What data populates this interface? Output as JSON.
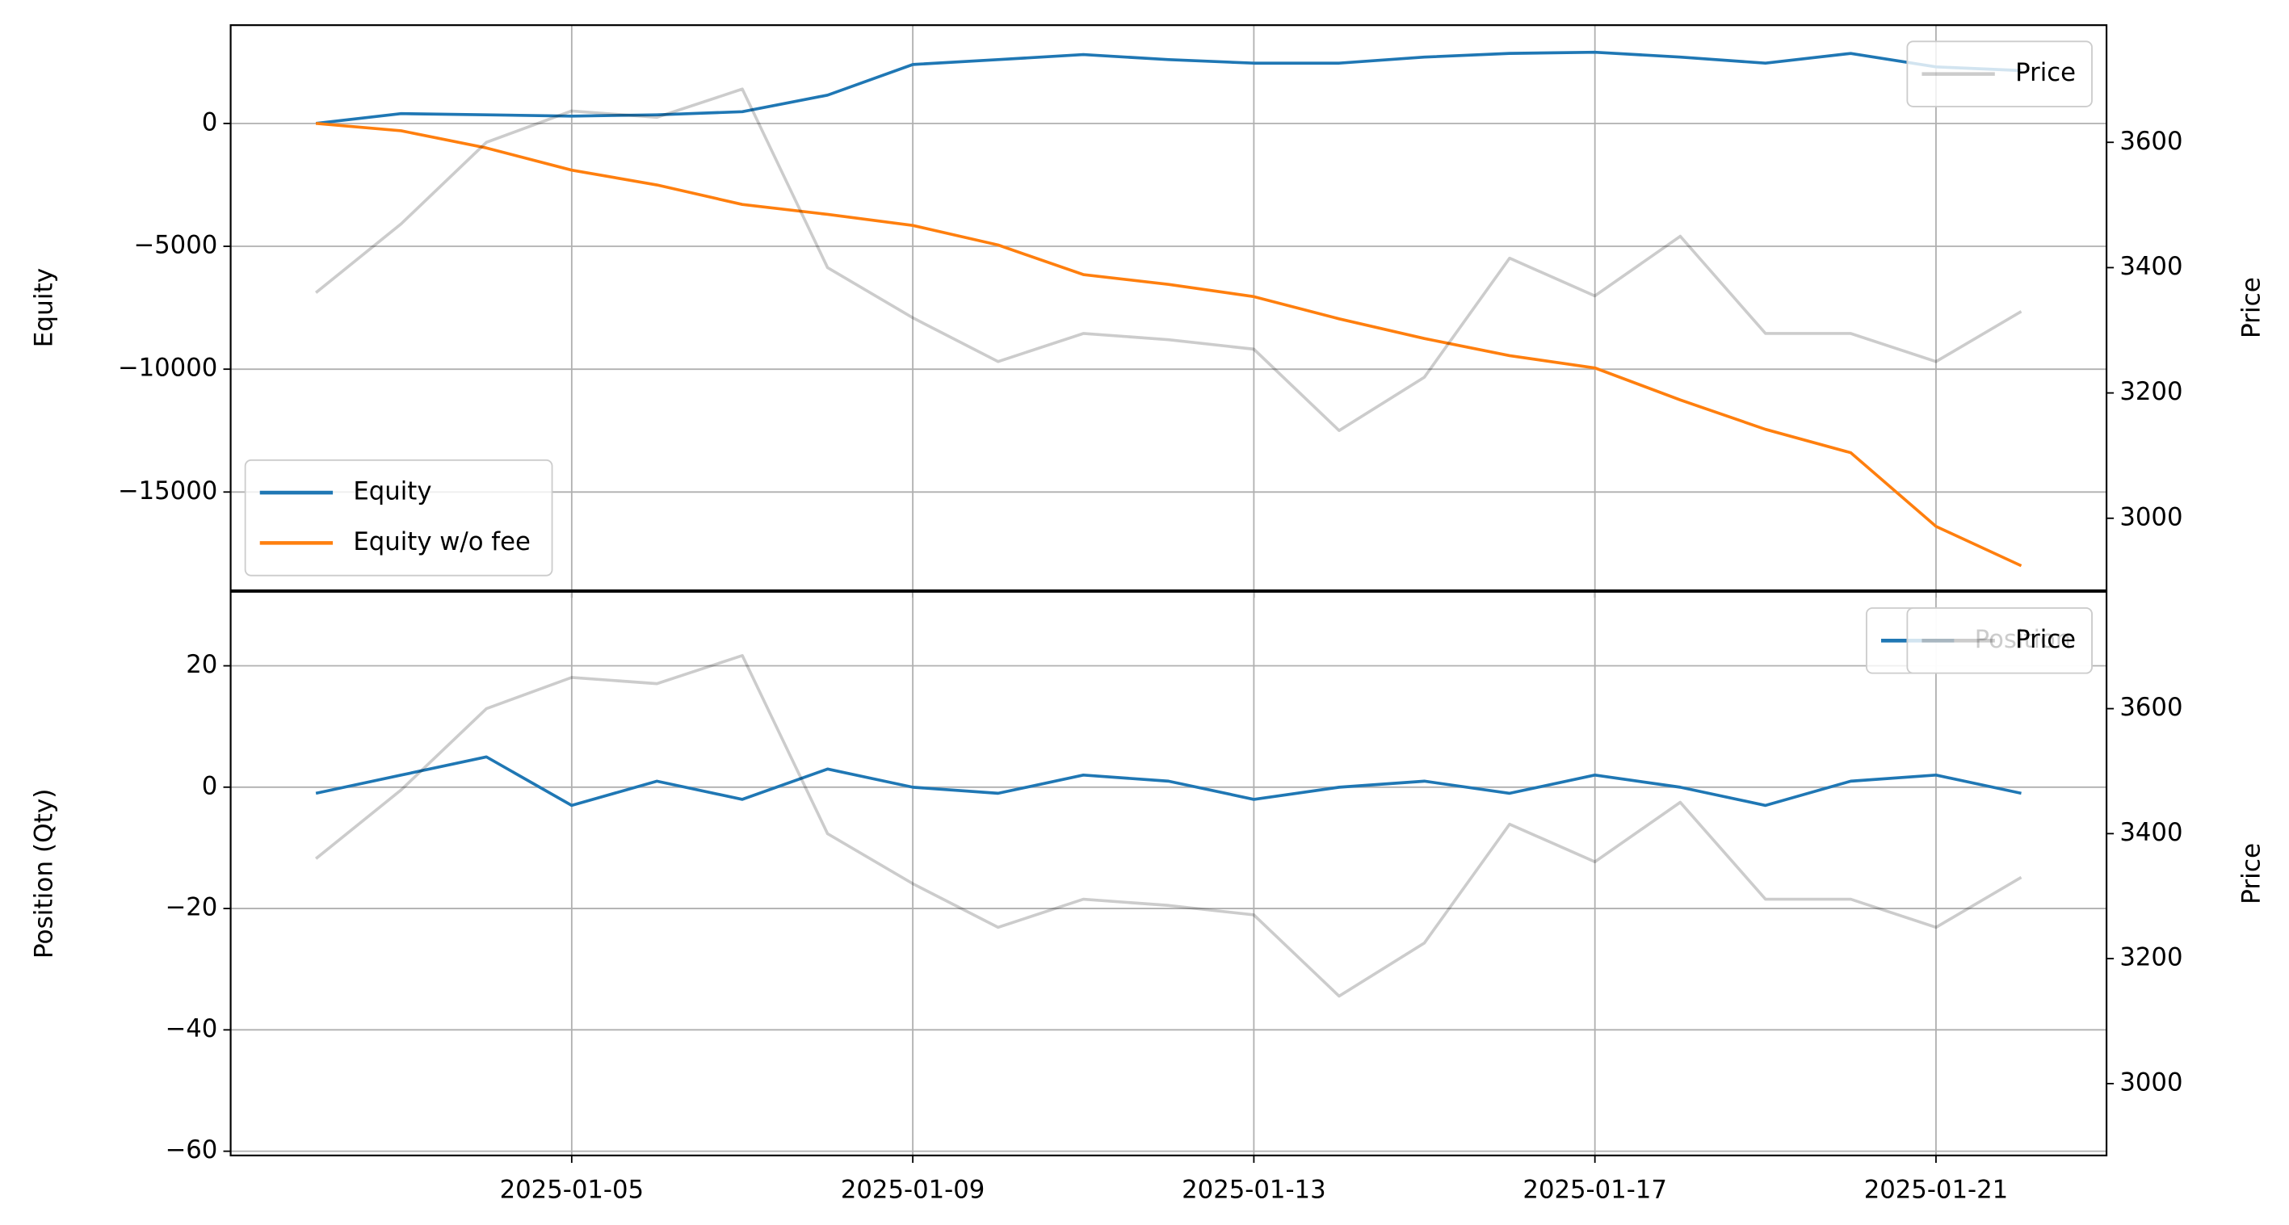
{
  "chart_data": [
    {
      "type": "line",
      "ylabel": "Equity",
      "y2label": "Price",
      "x": [
        "2025-01-02",
        "2025-01-03",
        "2025-01-04",
        "2025-01-05",
        "2025-01-06",
        "2025-01-07",
        "2025-01-08",
        "2025-01-09",
        "2025-01-10",
        "2025-01-11",
        "2025-01-12",
        "2025-01-13",
        "2025-01-14",
        "2025-01-15",
        "2025-01-16",
        "2025-01-17",
        "2025-01-18",
        "2025-01-19",
        "2025-01-20",
        "2025-01-21",
        "2025-01-22"
      ],
      "series": [
        {
          "name": "Equity",
          "color": "#1f77b4",
          "axis": "y",
          "values": [
            0,
            400,
            350,
            300,
            350,
            480,
            1150,
            2400,
            2600,
            2800,
            2600,
            2450,
            2450,
            2700,
            2850,
            2900,
            2700,
            2450,
            2850,
            2300,
            2150
          ]
        },
        {
          "name": "Equity w/o fee",
          "color": "#ff7f0e",
          "axis": "y",
          "values": [
            0,
            -300,
            -1000,
            -1900,
            -2500,
            -3300,
            -3700,
            -4150,
            -4950,
            -6150,
            -6550,
            -7050,
            -7950,
            -8750,
            -9450,
            -9950,
            -11250,
            -12450,
            -13400,
            -16400,
            -18000
          ]
        },
        {
          "name": "Price",
          "color": "#cccccc",
          "axis": "y2",
          "values": [
            3360,
            3470,
            3600,
            3650,
            3640,
            3685,
            3400,
            3320,
            3250,
            3295,
            3285,
            3270,
            3140,
            3225,
            3415,
            3355,
            3450,
            3295,
            3295,
            3250,
            3330
          ]
        }
      ],
      "xlim": [
        "2025-01-01",
        "2025-01-23"
      ],
      "xticks": [
        "2025-01-05",
        "2025-01-09",
        "2025-01-13",
        "2025-01-17",
        "2025-01-21"
      ],
      "ylim": [
        -19000,
        4000
      ],
      "yticks": [
        {
          "value": -15000,
          "label": "−15000"
        },
        {
          "value": -10000,
          "label": "−10000"
        },
        {
          "value": -5000,
          "label": "−5000"
        },
        0
      ],
      "y2lim": [
        2885,
        3787
      ],
      "y2ticks": [
        3000,
        3200,
        3400,
        3600
      ],
      "grid": true,
      "legend": "lower left",
      "legend2": "upper right"
    },
    {
      "type": "line",
      "ylabel": "Position (Qty)",
      "y2label": "Price",
      "x": [
        "2025-01-02",
        "2025-01-03",
        "2025-01-04",
        "2025-01-05",
        "2025-01-06",
        "2025-01-07",
        "2025-01-08",
        "2025-01-09",
        "2025-01-10",
        "2025-01-11",
        "2025-01-12",
        "2025-01-13",
        "2025-01-14",
        "2025-01-15",
        "2025-01-16",
        "2025-01-17",
        "2025-01-18",
        "2025-01-19",
        "2025-01-20",
        "2025-01-21",
        "2025-01-22"
      ],
      "series": [
        {
          "name": "Position",
          "color": "#1f77b4",
          "axis": "y",
          "values": [
            -1,
            2,
            5,
            -3,
            1,
            -2,
            3,
            0,
            -1,
            2,
            1,
            -2,
            0,
            1,
            -1,
            2,
            0,
            -3,
            1,
            2,
            -1
          ]
        },
        {
          "name": "Price",
          "color": "#cccccc",
          "axis": "y2",
          "values": [
            3360,
            3470,
            3600,
            3650,
            3640,
            3685,
            3400,
            3320,
            3250,
            3295,
            3285,
            3270,
            3140,
            3225,
            3415,
            3355,
            3450,
            3295,
            3295,
            3250,
            3330
          ]
        }
      ],
      "xlim": [
        "2025-01-01",
        "2025-01-23"
      ],
      "xticks": [
        "2025-01-05",
        "2025-01-09",
        "2025-01-13",
        "2025-01-17",
        "2025-01-21"
      ],
      "ylim": [
        -60.7,
        32.2
      ],
      "yticks": [
        {
          "value": -60,
          "label": "−60"
        },
        {
          "value": -40,
          "label": "−40"
        },
        {
          "value": -20,
          "label": "−20"
        },
        0,
        20
      ],
      "y2lim": [
        2885,
        3787
      ],
      "y2ticks": [
        3000,
        3200,
        3400,
        3600
      ],
      "grid": true,
      "legend": "upper right",
      "legend2": "upper right"
    }
  ]
}
